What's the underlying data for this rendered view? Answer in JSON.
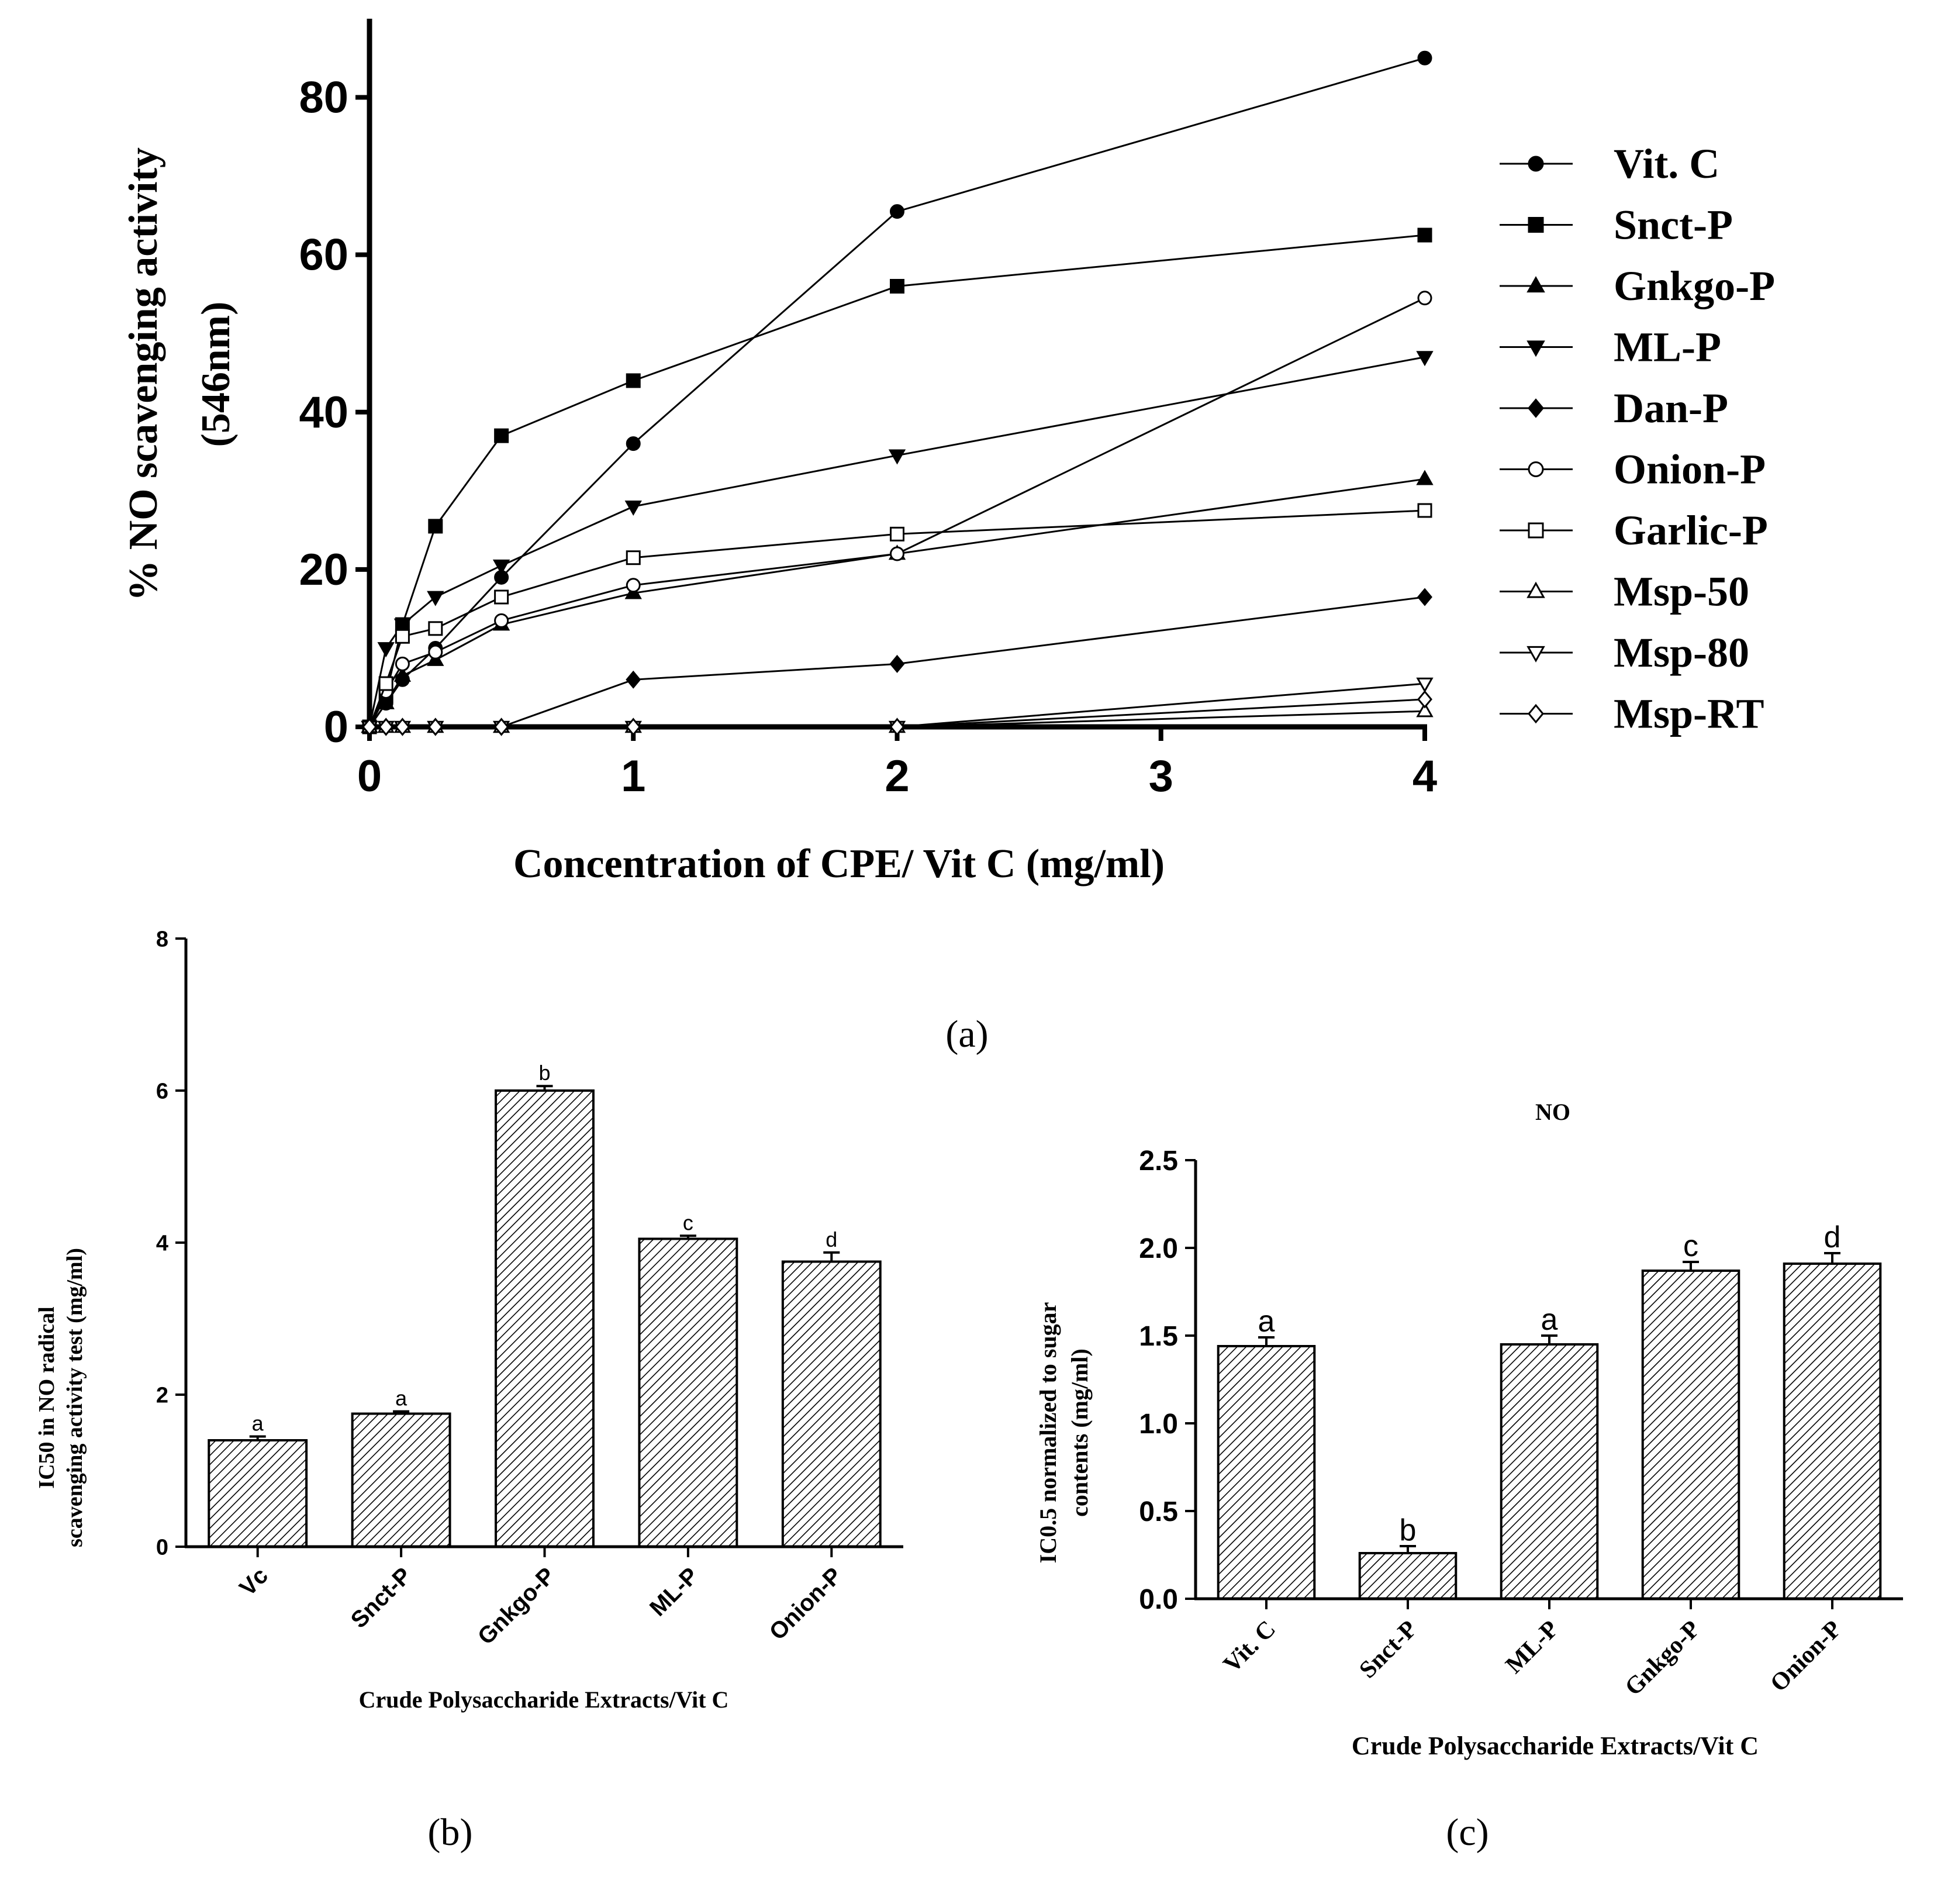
{
  "chart_data": [
    {
      "panel": "a",
      "type": "line",
      "panel_label": "(a)",
      "title": "",
      "xlabel": "Concentration of CPE/ Vit C (mg/ml)",
      "ylabel_line1": "% NO scavenging activity",
      "ylabel_line2": "(546nm)",
      "xlim": [
        0,
        4
      ],
      "ylim": [
        0,
        90
      ],
      "xticks": [
        0,
        1,
        2,
        3,
        4
      ],
      "yticks": [
        0,
        20,
        40,
        60,
        80
      ],
      "legend": "right",
      "series": [
        {
          "name": "Vit. C",
          "marker": "circle-filled",
          "x": [
            0,
            0.0625,
            0.125,
            0.25,
            0.5,
            1,
            2,
            4
          ],
          "y": [
            0,
            3,
            6,
            10,
            19,
            36,
            65.5,
            85
          ]
        },
        {
          "name": "Snct-P",
          "marker": "square-filled",
          "x": [
            0,
            0.0625,
            0.125,
            0.25,
            0.5,
            1,
            2,
            4
          ],
          "y": [
            0,
            4,
            13,
            25.5,
            37,
            44,
            56,
            62.5
          ]
        },
        {
          "name": "Gnkgo-P",
          "marker": "triangle-up-filled",
          "x": [
            0,
            0.0625,
            0.125,
            0.25,
            0.5,
            1,
            2,
            4
          ],
          "y": [
            0,
            3,
            6.5,
            8.5,
            13,
            17,
            22,
            31.5
          ]
        },
        {
          "name": "ML-P",
          "marker": "triangle-down-filled",
          "x": [
            0,
            0.0625,
            0.125,
            0.25,
            0.5,
            1,
            2,
            4
          ],
          "y": [
            0,
            10,
            13,
            16.5,
            20.5,
            28,
            34.5,
            47
          ]
        },
        {
          "name": "Dan-P",
          "marker": "diamond-filled",
          "x": [
            0,
            0.0625,
            0.125,
            0.25,
            0.5,
            1,
            2,
            4
          ],
          "y": [
            0,
            0,
            0,
            0,
            0,
            6,
            8,
            16.5
          ]
        },
        {
          "name": "Onion-P",
          "marker": "circle-open",
          "x": [
            0,
            0.0625,
            0.125,
            0.25,
            0.5,
            1,
            2,
            4
          ],
          "y": [
            0,
            4.5,
            8,
            9.5,
            13.5,
            18,
            22,
            54.5
          ]
        },
        {
          "name": "Garlic-P",
          "marker": "square-open",
          "x": [
            0,
            0.0625,
            0.125,
            0.25,
            0.5,
            1,
            2,
            4
          ],
          "y": [
            0,
            5.5,
            11.5,
            12.5,
            16.5,
            21.5,
            24.5,
            27.5
          ]
        },
        {
          "name": "Msp-50",
          "marker": "triangle-up-open",
          "x": [
            0,
            0.0625,
            0.125,
            0.25,
            0.5,
            1,
            2,
            4
          ],
          "y": [
            0,
            0,
            0,
            0,
            0,
            0,
            0,
            2
          ]
        },
        {
          "name": "Msp-80",
          "marker": "triangle-down-open",
          "x": [
            0,
            0.0625,
            0.125,
            0.25,
            0.5,
            1,
            2,
            4
          ],
          "y": [
            0,
            0,
            0,
            0,
            0,
            0,
            0,
            5.5
          ]
        },
        {
          "name": "Msp-RT",
          "marker": "diamond-open",
          "x": [
            0,
            0.0625,
            0.125,
            0.25,
            0.5,
            1,
            2,
            4
          ],
          "y": [
            0,
            0,
            0,
            0,
            0,
            0,
            0,
            3.5
          ]
        }
      ]
    },
    {
      "panel": "b",
      "type": "bar",
      "panel_label": "(b)",
      "title": "",
      "xlabel": "Crude Polysaccharide Extracts/Vit C",
      "ylabel_line1": "IC50 in NO radical",
      "ylabel_line2": "scavenging activity test (mg/ml)",
      "ylim": [
        0,
        8
      ],
      "yticks": [
        0,
        2,
        4,
        6,
        8
      ],
      "categories": [
        "Vc",
        "Snct-P",
        "Gnkgo-P",
        "ML-P",
        "Onion-P"
      ],
      "values": [
        1.4,
        1.75,
        6.0,
        4.05,
        3.75
      ],
      "errors": [
        0.05,
        0.03,
        0.06,
        0.04,
        0.12
      ],
      "sig_letters": [
        "a",
        "a",
        "b",
        "c",
        "d"
      ]
    },
    {
      "panel": "c",
      "type": "bar",
      "panel_label": "(c)",
      "title": "NO",
      "xlabel": "Crude Polysaccharide Extracts/Vit C",
      "ylabel_line1": "IC0.5 normalized to sugar",
      "ylabel_line2": "contents (mg/ml)",
      "ylim": [
        0,
        2.5
      ],
      "yticks": [
        "0.0",
        "0.5",
        "1.0",
        "1.5",
        "2.0",
        "2.5"
      ],
      "categories": [
        "Vit. C",
        "Snct-P",
        "ML-P",
        "Gnkgo-P",
        "Onion-P"
      ],
      "values": [
        1.44,
        0.26,
        1.45,
        1.87,
        1.91
      ],
      "errors": [
        0.05,
        0.04,
        0.05,
        0.05,
        0.06
      ],
      "sig_letters": [
        "a",
        "b",
        "a",
        "c",
        "d"
      ]
    }
  ]
}
